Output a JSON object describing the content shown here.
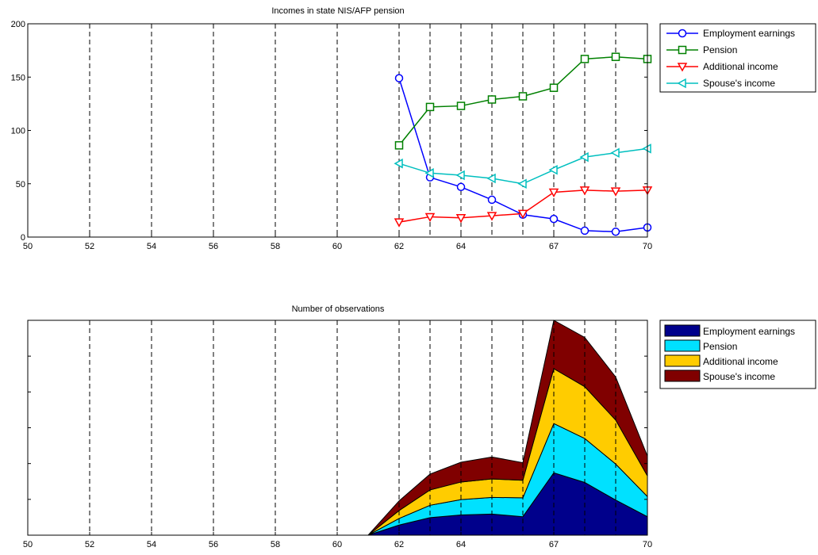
{
  "chart_data": [
    {
      "type": "line",
      "title": "Incomes in state NIS/AFP pension",
      "xlim": [
        50,
        70
      ],
      "ylim": [
        0,
        200
      ],
      "x_ticks": [
        50,
        52,
        54,
        56,
        58,
        60,
        62,
        64,
        67,
        70
      ],
      "y_ticks": [
        0,
        50,
        100,
        150,
        200
      ],
      "legend_placement": "outside-right-top",
      "series": [
        {
          "name": "Employment earnings",
          "color": "#0000ff",
          "marker": "circle",
          "x": [
            62,
            63,
            64,
            65,
            66,
            67,
            68,
            69,
            70
          ],
          "y": [
            149,
            56,
            47,
            35,
            21,
            17,
            6,
            5,
            9
          ]
        },
        {
          "name": "Pension",
          "color": "#008000",
          "marker": "square",
          "x": [
            62,
            63,
            64,
            65,
            66,
            67,
            68,
            69,
            70
          ],
          "y": [
            86,
            122,
            123,
            129,
            132,
            140,
            167,
            169,
            167
          ]
        },
        {
          "name": "Additional income",
          "color": "#ff0000",
          "marker": "triangle-down",
          "x": [
            62,
            63,
            64,
            65,
            66,
            67,
            68,
            69,
            70
          ],
          "y": [
            14,
            19,
            18,
            20,
            22,
            42,
            44,
            43,
            44
          ]
        },
        {
          "name": "Spouse's income",
          "color": "#00bfbf",
          "marker": "triangle-left",
          "x": [
            62,
            63,
            64,
            65,
            66,
            67,
            68,
            69,
            70
          ],
          "y": [
            69,
            60,
            58,
            55,
            50,
            63,
            75,
            79,
            83
          ]
        }
      ]
    },
    {
      "type": "area",
      "stacked": true,
      "title": "Number of observations",
      "xlim": [
        50,
        70
      ],
      "x_ticks": [
        50,
        52,
        54,
        56,
        58,
        60,
        62,
        64,
        67,
        70
      ],
      "y_tick_labels_visible": false,
      "legend_placement": "outside-right-top",
      "x": [
        61,
        62,
        63,
        64,
        65,
        66,
        67,
        68,
        69,
        70
      ],
      "series": [
        {
          "name": "Employment earnings",
          "color": "#00008b",
          "values": [
            0,
            0.23,
            0.4,
            0.46,
            0.48,
            0.42,
            1.42,
            1.2,
            0.8,
            0.42
          ]
        },
        {
          "name": "Pension",
          "color": "#00e1ff",
          "values": [
            0,
            0.15,
            0.28,
            0.35,
            0.38,
            0.43,
            1.12,
            1.0,
            0.82,
            0.46
          ]
        },
        {
          "name": "Additional income",
          "color": "#ffcc00",
          "values": [
            0,
            0.18,
            0.35,
            0.4,
            0.42,
            0.4,
            1.25,
            1.18,
            1.0,
            0.47
          ]
        },
        {
          "name": "Spouse's income",
          "color": "#800000",
          "values": [
            0,
            0.22,
            0.36,
            0.45,
            0.5,
            0.4,
            1.1,
            1.12,
            0.98,
            0.45
          ]
        }
      ]
    }
  ]
}
